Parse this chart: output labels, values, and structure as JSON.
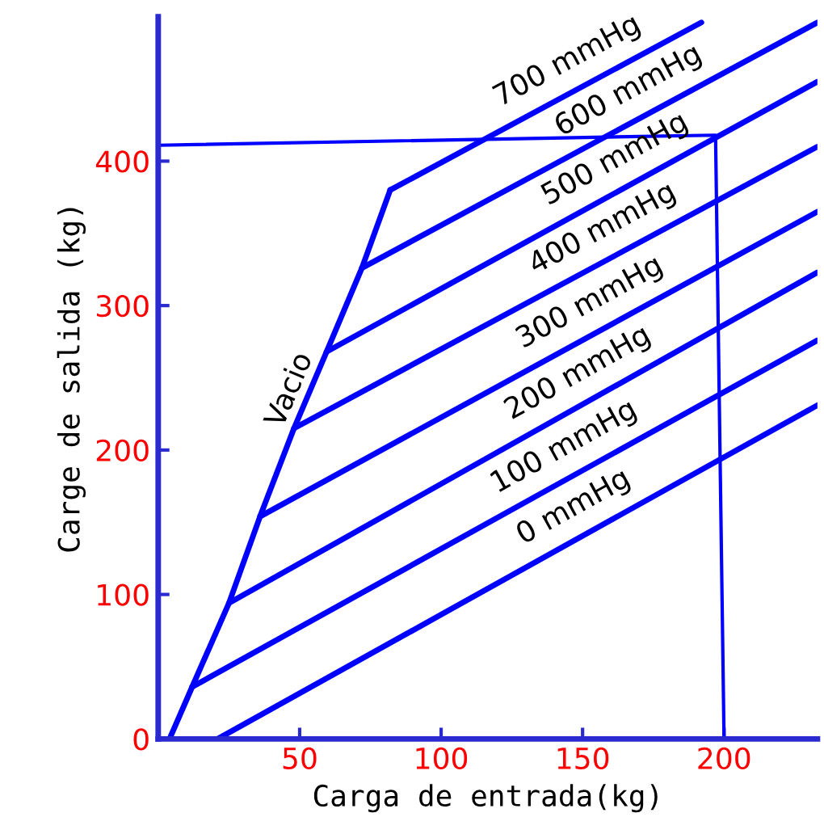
{
  "chart_data": {
    "type": "line",
    "xlabel": "Carga de entrada(kg)",
    "ylabel": "Carge de salida (kg)",
    "xlim": [
      0,
      233
    ],
    "ylim": [
      0,
      500
    ],
    "xticks": [
      50,
      100,
      150,
      200
    ],
    "yticks": [
      0,
      100,
      200,
      300,
      400
    ],
    "grid": false,
    "legend": false,
    "marker": "none",
    "line_style": "solid",
    "series": [
      {
        "name": "Vacio",
        "color": "#0000ff",
        "x": [
          4,
          12,
          25,
          36,
          48,
          59.5,
          72,
          82
        ],
        "values": [
          0,
          36,
          94,
          154,
          215,
          268,
          326,
          380
        ]
      },
      {
        "name": "0 mmHg",
        "color": "#0000ff",
        "x": [
          21,
          233
        ],
        "values": [
          0,
          231
        ]
      },
      {
        "name": "100 mmHg",
        "color": "#0000ff",
        "x": [
          12,
          233
        ],
        "values": [
          36,
          276
        ]
      },
      {
        "name": "200 mmHg",
        "color": "#0000ff",
        "x": [
          25,
          233
        ],
        "values": [
          94,
          323
        ]
      },
      {
        "name": "300 mmHg",
        "color": "#0000ff",
        "x": [
          36,
          233
        ],
        "values": [
          154,
          365
        ]
      },
      {
        "name": "400 mmHg",
        "color": "#0000ff",
        "x": [
          48,
          233
        ],
        "values": [
          215,
          410
        ]
      },
      {
        "name": "500 mmHg",
        "color": "#0000ff",
        "x": [
          59.5,
          233
        ],
        "values": [
          268,
          455
        ]
      },
      {
        "name": "600 mmHg",
        "color": "#0000ff",
        "x": [
          72,
          233
        ],
        "values": [
          326,
          496
        ]
      },
      {
        "name": "700 mmHg",
        "color": "#0000ff",
        "x": [
          82,
          192
        ],
        "values": [
          380,
          496
        ]
      },
      {
        "color": "#0000ff",
        "x": [
          0,
          197,
          200
        ],
        "values": [
          411,
          418,
          0
        ]
      }
    ]
  }
}
